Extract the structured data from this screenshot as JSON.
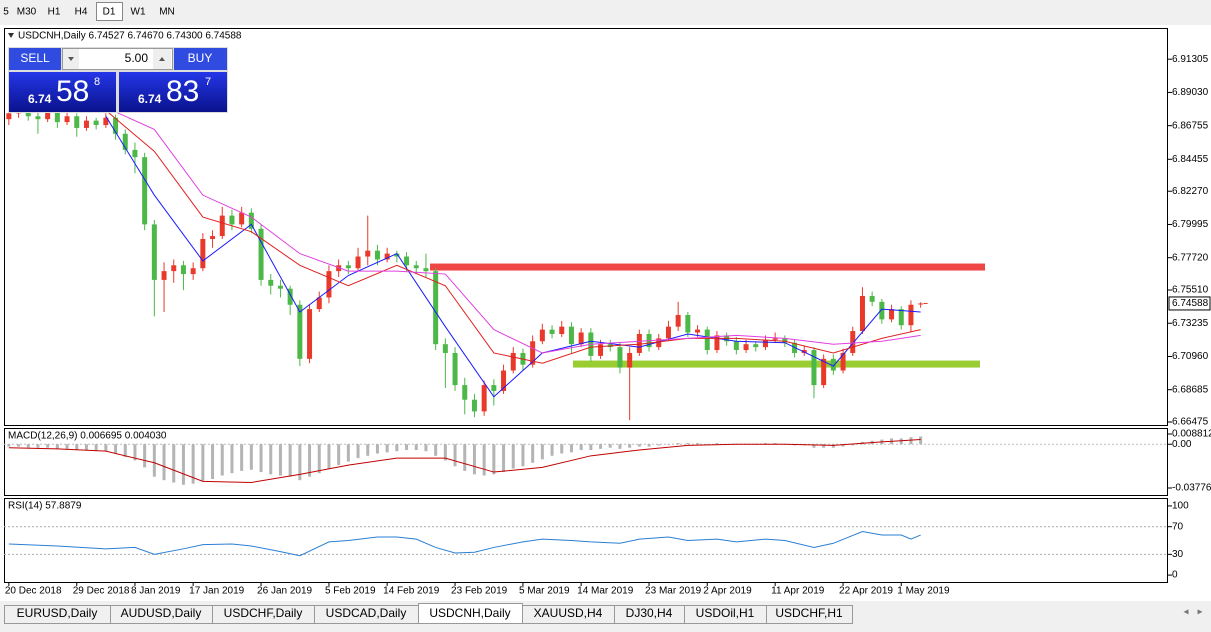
{
  "toolbar": {
    "timeframes": [
      "5",
      "M30",
      "H1",
      "H4",
      "D1",
      "W1",
      "MN"
    ]
  },
  "trade_panel": {
    "sell": "SELL",
    "buy": "BUY",
    "volume": "5.00",
    "bid": {
      "big": "6.74",
      "pips": "58",
      "point": "8"
    },
    "ask": {
      "big": "6.74",
      "pips": "83",
      "point": "7"
    }
  },
  "tabs": [
    "EURUSD,Daily",
    "AUDUSD,Daily",
    "USDCHF,Daily",
    "USDCAD,Daily",
    "USDCNH,Daily",
    "XAUUSD,H4",
    "DJ30,H4",
    "USDOil,H1",
    "USDCHF,H1"
  ],
  "chart_data": [
    {
      "type": "candlestick",
      "title": "USDCNH,Daily 6.74527 6.74670 6.74300 6.74588",
      "up_color": "#e8392b",
      "down_color": "#4cb848",
      "xlim": [
        -0.5,
        119.5
      ],
      "ylim": [
        6.6627,
        6.9344
      ],
      "yticks": [
        6.91305,
        {
          "value": 6.8903,
          "label": "6.89030"
        },
        6.86755,
        6.84455,
        {
          "value": 6.8227,
          "label": "6.82270"
        },
        6.79995,
        {
          "value": 6.7772,
          "label": "6.77720"
        },
        {
          "value": 6.7551,
          "label": "6.75510"
        },
        6.73235,
        {
          "value": 6.7096,
          "label": "6.70960"
        },
        6.68685,
        6.66475
      ],
      "xticks": [
        {
          "value": 0,
          "label": "20 Dec 2018"
        },
        {
          "value": 7,
          "label": "29 Dec 2018"
        },
        {
          "value": 13,
          "label": "8 Jan 2019"
        },
        {
          "value": 19,
          "label": "17 Jan 2019"
        },
        {
          "value": 26,
          "label": "26 Jan 2019"
        },
        {
          "value": 33,
          "label": "5 Feb 2019"
        },
        {
          "value": 39,
          "label": "14 Feb 2019"
        },
        {
          "value": 46,
          "label": "23 Feb 2019"
        },
        {
          "value": 53,
          "label": "5 Mar 2019"
        },
        {
          "value": 59,
          "label": "14 Mar 2019"
        },
        {
          "value": 66,
          "label": "23 Mar 2019"
        },
        {
          "value": 72,
          "label": "2 Apr 2019"
        },
        {
          "value": 79,
          "label": "11 Apr 2019"
        },
        {
          "value": 86,
          "label": "22 Apr 2019"
        },
        {
          "value": 92,
          "label": "1 May 2019"
        }
      ],
      "last_price": 6.74588,
      "candles": [
        [
          6.872,
          6.879,
          6.868,
          6.876
        ],
        [
          6.876,
          6.882,
          6.873,
          6.879
        ],
        [
          6.879,
          6.881,
          6.871,
          6.874
        ],
        [
          6.874,
          6.877,
          6.862,
          6.872
        ],
        [
          6.872,
          6.881,
          6.87,
          6.878
        ],
        [
          6.878,
          6.88,
          6.866,
          6.87
        ],
        [
          6.87,
          6.877,
          6.868,
          6.874
        ],
        [
          6.874,
          6.876,
          6.86,
          6.866
        ],
        [
          6.866,
          6.874,
          6.864,
          6.871
        ],
        [
          6.871,
          6.873,
          6.865,
          6.868
        ],
        [
          6.868,
          6.876,
          6.866,
          6.873
        ],
        [
          6.873,
          6.875,
          6.858,
          6.862
        ],
        [
          6.862,
          6.865,
          6.848,
          6.851
        ],
        [
          6.851,
          6.856,
          6.835,
          6.846
        ],
        [
          6.846,
          6.849,
          6.796,
          6.8
        ],
        [
          6.8,
          6.803,
          6.737,
          6.762
        ],
        [
          6.762,
          6.774,
          6.74,
          6.768
        ],
        [
          6.768,
          6.776,
          6.76,
          6.772
        ],
        [
          6.772,
          6.775,
          6.755,
          6.766
        ],
        [
          6.766,
          6.774,
          6.762,
          6.77
        ],
        [
          6.77,
          6.794,
          6.768,
          6.79
        ],
        [
          6.79,
          6.796,
          6.784,
          6.792
        ],
        [
          6.792,
          6.812,
          6.79,
          6.806
        ],
        [
          6.806,
          6.81,
          6.796,
          6.8
        ],
        [
          6.8,
          6.812,
          6.798,
          6.808
        ],
        [
          6.808,
          6.811,
          6.794,
          6.797
        ],
        [
          6.797,
          6.8,
          6.758,
          6.762
        ],
        [
          6.762,
          6.766,
          6.752,
          6.758
        ],
        [
          6.758,
          6.762,
          6.75,
          6.756
        ],
        [
          6.756,
          6.758,
          6.738,
          6.745
        ],
        [
          6.745,
          6.748,
          6.703,
          6.708
        ],
        [
          6.708,
          6.745,
          6.705,
          6.742
        ],
        [
          6.742,
          6.754,
          6.74,
          6.75
        ],
        [
          6.75,
          6.772,
          6.746,
          6.768
        ],
        [
          6.768,
          6.776,
          6.764,
          6.772
        ],
        [
          6.772,
          6.775,
          6.766,
          6.77
        ],
        [
          6.77,
          6.784,
          6.768,
          6.778
        ],
        [
          6.778,
          6.806,
          6.772,
          6.782
        ],
        [
          6.782,
          6.786,
          6.772,
          6.776
        ],
        [
          6.776,
          6.784,
          6.774,
          6.78
        ],
        [
          6.78,
          6.782,
          6.774,
          6.778
        ],
        [
          6.778,
          6.781,
          6.768,
          6.772
        ],
        [
          6.772,
          6.775,
          6.766,
          6.77
        ],
        [
          6.77,
          6.78,
          6.764,
          6.768
        ],
        [
          6.768,
          6.77,
          6.714,
          6.718
        ],
        [
          6.718,
          6.722,
          6.688,
          6.712
        ],
        [
          6.712,
          6.716,
          6.686,
          6.69
        ],
        [
          6.69,
          6.695,
          6.67,
          6.68
        ],
        [
          6.68,
          6.684,
          6.668,
          6.672
        ],
        [
          6.672,
          6.693,
          6.669,
          6.69
        ],
        [
          6.69,
          6.694,
          6.676,
          6.686
        ],
        [
          6.686,
          6.704,
          6.684,
          6.7
        ],
        [
          6.7,
          6.716,
          6.698,
          6.712
        ],
        [
          6.712,
          6.715,
          6.7,
          6.704
        ],
        [
          6.704,
          6.724,
          6.702,
          6.72
        ],
        [
          6.72,
          6.732,
          6.718,
          6.728
        ],
        [
          6.728,
          6.731,
          6.722,
          6.725
        ],
        [
          6.725,
          6.734,
          6.723,
          6.73
        ],
        [
          6.73,
          6.733,
          6.712,
          6.718
        ],
        [
          6.718,
          6.729,
          6.716,
          6.726
        ],
        [
          6.726,
          6.729,
          6.706,
          6.71
        ],
        [
          6.71,
          6.721,
          6.708,
          6.718
        ],
        [
          6.718,
          6.721,
          6.713,
          6.716
        ],
        [
          6.716,
          6.719,
          6.698,
          6.702
        ],
        [
          6.702,
          6.716,
          6.666,
          6.712
        ],
        [
          6.712,
          6.728,
          6.71,
          6.725
        ],
        [
          6.725,
          6.728,
          6.713,
          6.716
        ],
        [
          6.716,
          6.725,
          6.714,
          6.722
        ],
        [
          6.722,
          6.734,
          6.72,
          6.73
        ],
        [
          6.73,
          6.747,
          6.727,
          6.738
        ],
        [
          6.738,
          6.74,
          6.723,
          6.726
        ],
        [
          6.726,
          6.731,
          6.723,
          6.728
        ],
        [
          6.728,
          6.73,
          6.711,
          6.714
        ],
        [
          6.714,
          6.727,
          6.712,
          6.724
        ],
        [
          6.724,
          6.726,
          6.717,
          6.72
        ],
        [
          6.72,
          6.723,
          6.711,
          6.714
        ],
        [
          6.714,
          6.721,
          6.712,
          6.718
        ],
        [
          6.718,
          6.72,
          6.713,
          6.716
        ],
        [
          6.716,
          6.724,
          6.714,
          6.721
        ],
        [
          6.721,
          6.726,
          6.719,
          6.722
        ],
        [
          6.722,
          6.724,
          6.716,
          6.719
        ],
        [
          6.719,
          6.721,
          6.709,
          6.712
        ],
        [
          6.712,
          6.717,
          6.71,
          6.714
        ],
        [
          6.714,
          6.716,
          6.681,
          6.69
        ],
        [
          6.69,
          6.711,
          6.688,
          6.708
        ],
        [
          6.708,
          6.711,
          6.697,
          6.7
        ],
        [
          6.7,
          6.715,
          6.698,
          6.712
        ],
        [
          6.712,
          6.73,
          6.71,
          6.727
        ],
        [
          6.727,
          6.757,
          6.725,
          6.751
        ],
        [
          6.751,
          6.754,
          6.744,
          6.747
        ],
        [
          6.747,
          6.749,
          6.732,
          6.735
        ],
        [
          6.735,
          6.745,
          6.733,
          6.742
        ],
        [
          6.742,
          6.744,
          6.728,
          6.731
        ],
        [
          6.731,
          6.748,
          6.726,
          6.745
        ],
        [
          6.74527,
          6.7467,
          6.743,
          6.74588
        ]
      ],
      "lines": [
        {
          "color": "#1a1aff",
          "x": [
            10,
            15,
            20,
            25,
            30,
            35,
            40,
            45,
            50,
            55,
            60,
            65,
            70,
            75,
            80,
            85,
            90,
            94
          ],
          "values": [
            6.874,
            6.82,
            6.775,
            6.8,
            6.74,
            6.765,
            6.78,
            6.73,
            6.682,
            6.712,
            6.72,
            6.716,
            6.725,
            6.72,
            6.719,
            6.703,
            6.742,
            6.74
          ]
        },
        {
          "color": "#e02020",
          "x": [
            10,
            15,
            20,
            25,
            30,
            35,
            40,
            45,
            50,
            55,
            60,
            65,
            70,
            75,
            80,
            85,
            90,
            94
          ],
          "values": [
            6.878,
            6.85,
            6.805,
            6.795,
            6.772,
            6.758,
            6.772,
            6.758,
            6.712,
            6.705,
            6.716,
            6.718,
            6.722,
            6.722,
            6.72,
            6.712,
            6.722,
            6.728
          ]
        },
        {
          "color": "#e040e0",
          "x": [
            10,
            15,
            20,
            25,
            30,
            35,
            40,
            45,
            50,
            55,
            60,
            65,
            70,
            75,
            80,
            85,
            90,
            94
          ],
          "values": [
            6.88,
            6.865,
            6.82,
            6.805,
            6.78,
            6.768,
            6.768,
            6.766,
            6.728,
            6.712,
            6.718,
            6.72,
            6.722,
            6.724,
            6.722,
            6.718,
            6.72,
            6.724
          ]
        }
      ],
      "levels": [
        {
          "value": 6.7708,
          "color": "#f04545"
        },
        {
          "value": 6.7044,
          "color": "#9acd32"
        }
      ]
    },
    {
      "type": "macd",
      "title": "MACD(12,26,9) 0.006695 0.004030",
      "color": "#b4b4b4",
      "xlim": [
        -0.5,
        119.5
      ],
      "ylim": [
        -0.0438,
        0.014
      ],
      "yticks": [
        0.008812,
        {
          "value": 0,
          "label": "0.00"
        },
        -0.037765
      ],
      "values": [
        -0.002,
        -0.002,
        -0.003,
        -0.003,
        -0.003,
        -0.004,
        -0.004,
        -0.005,
        -0.005,
        -0.006,
        -0.006,
        -0.008,
        -0.011,
        -0.014,
        -0.02,
        -0.028,
        -0.031,
        -0.033,
        -0.035,
        -0.034,
        -0.032,
        -0.03,
        -0.027,
        -0.025,
        -0.023,
        -0.022,
        -0.024,
        -0.026,
        -0.027,
        -0.028,
        -0.031,
        -0.028,
        -0.025,
        -0.021,
        -0.018,
        -0.015,
        -0.012,
        -0.01,
        -0.008,
        -0.007,
        -0.006,
        -0.005,
        -0.005,
        -0.006,
        -0.01,
        -0.014,
        -0.019,
        -0.023,
        -0.026,
        -0.027,
        -0.026,
        -0.024,
        -0.021,
        -0.019,
        -0.016,
        -0.013,
        -0.01,
        -0.008,
        -0.007,
        -0.005,
        -0.005,
        -0.004,
        -0.003,
        -0.004,
        -0.003,
        -0.002,
        -0.002,
        -0.001,
        0.0,
        0.001,
        0.001,
        0.001,
        0.0,
        0.001,
        0.0,
        0.0,
        0.0,
        0.0,
        0.001,
        0.001,
        0.0,
        -0.001,
        -0.001,
        -0.003,
        -0.003,
        -0.003,
        -0.002,
        -0.001,
        0.002,
        0.003,
        0.004,
        0.005,
        0.005,
        0.006,
        0.006695
      ],
      "signal": {
        "color": "#c00000",
        "x": [
          0,
          5,
          10,
          15,
          20,
          25,
          30,
          35,
          40,
          45,
          50,
          55,
          60,
          65,
          70,
          75,
          80,
          85,
          90,
          94
        ],
        "values": [
          -0.003,
          -0.004,
          -0.006,
          -0.016,
          -0.032,
          -0.033,
          -0.026,
          -0.018,
          -0.012,
          -0.012,
          -0.024,
          -0.02,
          -0.01,
          -0.005,
          -0.001,
          0.0,
          0.0,
          -0.001,
          0.002,
          0.00403
        ]
      }
    },
    {
      "type": "line",
      "title": "RSI(14) 57.8879",
      "color": "#2a7fd4",
      "xlim": [
        -0.5,
        119.5
      ],
      "ylim": [
        -10,
        111.5
      ],
      "yticks": [
        100,
        70,
        30,
        0
      ],
      "levels": [
        70,
        30
      ],
      "x": [
        0,
        5,
        10,
        13,
        15,
        18,
        20,
        23,
        25,
        28,
        30,
        33,
        35,
        38,
        40,
        42,
        44,
        46,
        48,
        50,
        53,
        55,
        58,
        60,
        63,
        65,
        68,
        70,
        73,
        75,
        78,
        80,
        83,
        85,
        88,
        90,
        92,
        93,
        94
      ],
      "values": [
        45,
        42,
        38,
        40,
        30,
        38,
        44,
        45,
        42,
        34,
        28,
        48,
        50,
        55,
        55,
        52,
        40,
        32,
        33,
        40,
        48,
        52,
        50,
        48,
        46,
        52,
        55,
        50,
        52,
        48,
        52,
        50,
        40,
        46,
        63,
        58,
        58,
        52,
        57.8879
      ]
    }
  ]
}
